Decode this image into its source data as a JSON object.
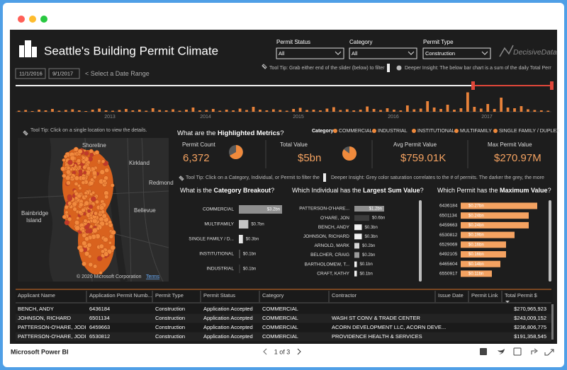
{
  "window": {
    "app": "Microsoft Power BI",
    "page": "1 of 3"
  },
  "header": {
    "title": "Seattle's Building Permit Climate",
    "start_date": "11/1/2016",
    "end_date": "9/1/2017",
    "date_hint": "< Select a Date Range",
    "logo": "DecisiveData"
  },
  "filters": [
    {
      "label": "Permit Status",
      "value": "All"
    },
    {
      "label": "Category",
      "value": "All"
    },
    {
      "label": "Permit Type",
      "value": "Construction"
    }
  ],
  "tips": {
    "slider_tip": "Tool Tip: Grab either end of the slider (below) to filter",
    "slider_insight": "Deeper Insight: The below bar chart is a sum of the daily Total Permit",
    "map_tip": "Tool Tip: Click on a single location to view the details.",
    "chart_tip": "Tool Tip: Click on a Category, Individual, or Permit to filter the",
    "chart_insight": "Deeper Insight: Grey color saturation correlates to the # of permits. The darker the grey, the more"
  },
  "timeline": {
    "years": [
      "2013",
      "2014",
      "2015",
      "2016",
      "2017"
    ],
    "ylim": [
      0,
      60
    ],
    "color": "#e8823a",
    "values": [
      3,
      5,
      2,
      6,
      4,
      8,
      3,
      5,
      7,
      4,
      2,
      6,
      9,
      4,
      3,
      5,
      8,
      4,
      6,
      3,
      10,
      5,
      4,
      7,
      3,
      6,
      12,
      4,
      5,
      8,
      3,
      6,
      4,
      9,
      5,
      14,
      6,
      4,
      7,
      5,
      3,
      8,
      11,
      5,
      6,
      4,
      9,
      13,
      5,
      7,
      4,
      6,
      15,
      8,
      5,
      10,
      6,
      4,
      18,
      7,
      9,
      30,
      12,
      8,
      20,
      6,
      10,
      55,
      14,
      9,
      22,
      8,
      40,
      12,
      10,
      16,
      7,
      5,
      4,
      3
    ]
  },
  "map": {
    "places": [
      "Shoreline",
      "Kirkland",
      "Bainbridge",
      "Island",
      "Redmond",
      "Bellevue"
    ],
    "copyright": "© 2020 Microsoft Corporation",
    "terms": "Terms"
  },
  "metrics": {
    "title": {
      "pre": "What are the ",
      "bold": "Highlighted Metrics",
      "post": "?"
    },
    "legend_title": "Category",
    "legend_color": "#f08a3c",
    "legend": [
      "COMMERCIAL",
      "INDUSTRIAL",
      "INSTITUTIONAL",
      "MULTIFAMILY",
      "SINGLE FAMILY / DUPLEX"
    ],
    "cards": [
      {
        "label": "Permit Count",
        "value": "6,372"
      },
      {
        "label": "Total Value",
        "value": "$5bn"
      },
      {
        "label": "Avg Permit Value",
        "value": "$759.01K"
      },
      {
        "label": "Max Permit Value",
        "value": "$270.97M"
      }
    ]
  },
  "chart_data": [
    {
      "type": "bar",
      "title": {
        "pre": "What is the ",
        "bold": "Category Breakout",
        "post": "?"
      },
      "categories": [
        "COMMERCIAL",
        "MULTIFAMILY",
        "SINGLE FAMILY / D...",
        "INSTITUTIONAL",
        "INDUSTRIAL"
      ],
      "values": [
        3.2,
        0.7,
        0.3,
        0.1,
        0.1
      ],
      "value_labels": [
        "$3.2bn",
        "$0.7bn",
        "$0.3bn",
        "$0.1bn",
        "$0.1bn"
      ],
      "colors": [
        "#8f8f8f",
        "#c4c4c4",
        "#e6e6e6",
        "#4a4a4a",
        "#333333"
      ],
      "xlim": [
        0,
        3.2
      ]
    },
    {
      "type": "bar",
      "title": {
        "pre": "Which Individual has the ",
        "bold": "Largest Sum Value",
        "post": "?"
      },
      "categories": [
        "PATTERSON-O'HARE...",
        "O'HARE, JON",
        "BENCH, ANDY",
        "JOHNSON, RICHARD",
        "ARNOLD, MARK",
        "BELCHER, CRAIG",
        "BARTHOLOMEW, T...",
        "CRAFT, KATHY"
      ],
      "values": [
        1.2,
        0.6,
        0.3,
        0.3,
        0.2,
        0.2,
        0.1,
        0.1
      ],
      "value_labels": [
        "$1.2bn",
        "$0.6bn",
        "$0.3bn",
        "$0.3bn",
        "$0.2bn",
        "$0.2bn",
        "$0.1bn",
        "$0.1bn"
      ],
      "colors": [
        "#8f8f8f",
        "#3c3c3c",
        "#f2f2f2",
        "#f2f2f2",
        "#d6d6d6",
        "#9a9a9a",
        "#f2f2f2",
        "#f2f2f2"
      ],
      "xlim": [
        0,
        1.2
      ]
    },
    {
      "type": "bar",
      "title": {
        "pre": "Which Permit has the ",
        "bold": "Maximum Value",
        "post": "?"
      },
      "categories": [
        "6436184",
        "6501134",
        "6459663",
        "6530812",
        "6529069",
        "6492105",
        "6465604",
        "6550917"
      ],
      "values": [
        0.27,
        0.24,
        0.24,
        0.19,
        0.16,
        0.16,
        0.14,
        0.11
      ],
      "value_labels": [
        "$0.27bn",
        "$0.24bn",
        "$0.24bn",
        "$0.19bn",
        "$0.16bn",
        "$0.16bn",
        "$0.14bn",
        "$0.11bn"
      ],
      "colors": [
        "#f4a261",
        "#f4a261",
        "#f4a261",
        "#f4a261",
        "#f4a261",
        "#f4a261",
        "#f4a261",
        "#f4a261"
      ],
      "xlim": [
        0,
        0.27
      ]
    }
  ],
  "table": {
    "columns": [
      "Applicant Name",
      "Application Permit Numb...",
      "Permit Type",
      "Permit Status",
      "Category",
      "Contractor",
      "Issue Date",
      "Permit Link",
      "Total Permit $"
    ],
    "rows": [
      [
        "BENCH, ANDY",
        "6436184",
        "Construction",
        "Application Accepted",
        "COMMERCIAL",
        null,
        null,
        null,
        "$270,965,923"
      ],
      [
        "JOHNSON, RICHARD",
        "6501134",
        "Construction",
        "Application Accepted",
        "COMMERCIAL",
        "WASH ST CONV & TRADE CENTER",
        null,
        null,
        "$243,009,152"
      ],
      [
        "PATTERSON-O'HARE, JODI",
        "6459663",
        "Construction",
        "Application Accepted",
        "COMMERCIAL",
        "ACORN DEVELOPMENT LLC, ACORN DEVE...",
        null,
        null,
        "$236,806,775"
      ],
      [
        "PATTERSON-O'HARE, JODI",
        "6530812",
        "Construction",
        "Application Accepted",
        "COMMERCIAL",
        "PROVIDENCE HEALTH & SERVICES",
        null,
        null,
        "$191,358,545"
      ]
    ]
  }
}
